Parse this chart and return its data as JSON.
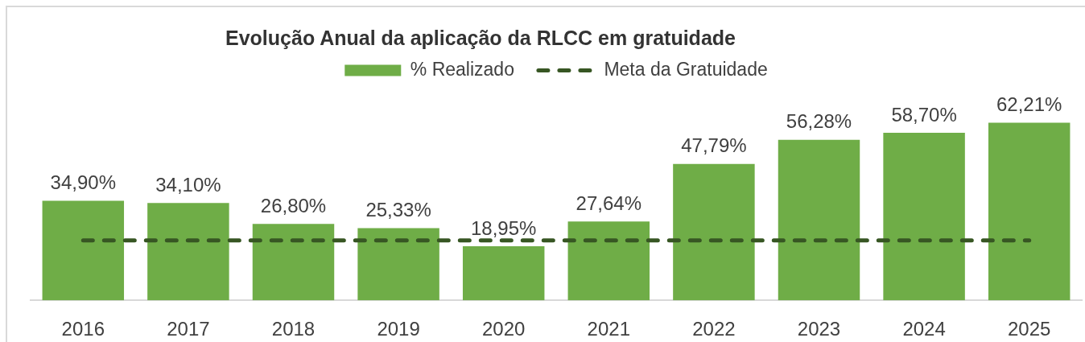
{
  "chart_data": {
    "type": "bar",
    "title": "Evolução Anual da aplicação da RLCC em gratuidade",
    "categories": [
      "2016",
      "2017",
      "2018",
      "2019",
      "2020",
      "2021",
      "2022",
      "2023",
      "2024",
      "2025"
    ],
    "series": [
      {
        "name": "% Realizado",
        "color": "#6fad47",
        "values": [
          34.9,
          34.1,
          26.8,
          25.33,
          18.95,
          27.64,
          47.79,
          56.28,
          58.7,
          62.21
        ],
        "value_labels": [
          "34,90%",
          "34,10%",
          "26,80%",
          "25,33%",
          "18,95%",
          "27,64%",
          "47,79%",
          "56,28%",
          "58,70%",
          "62,21%"
        ]
      },
      {
        "name": "Meta da Gratuidade",
        "type": "line",
        "color": "#375623",
        "line_style": "dashed",
        "values": [
          21,
          21,
          21,
          21,
          21,
          21,
          21,
          21,
          21,
          21
        ]
      }
    ],
    "legend": "top",
    "grid": false
  }
}
